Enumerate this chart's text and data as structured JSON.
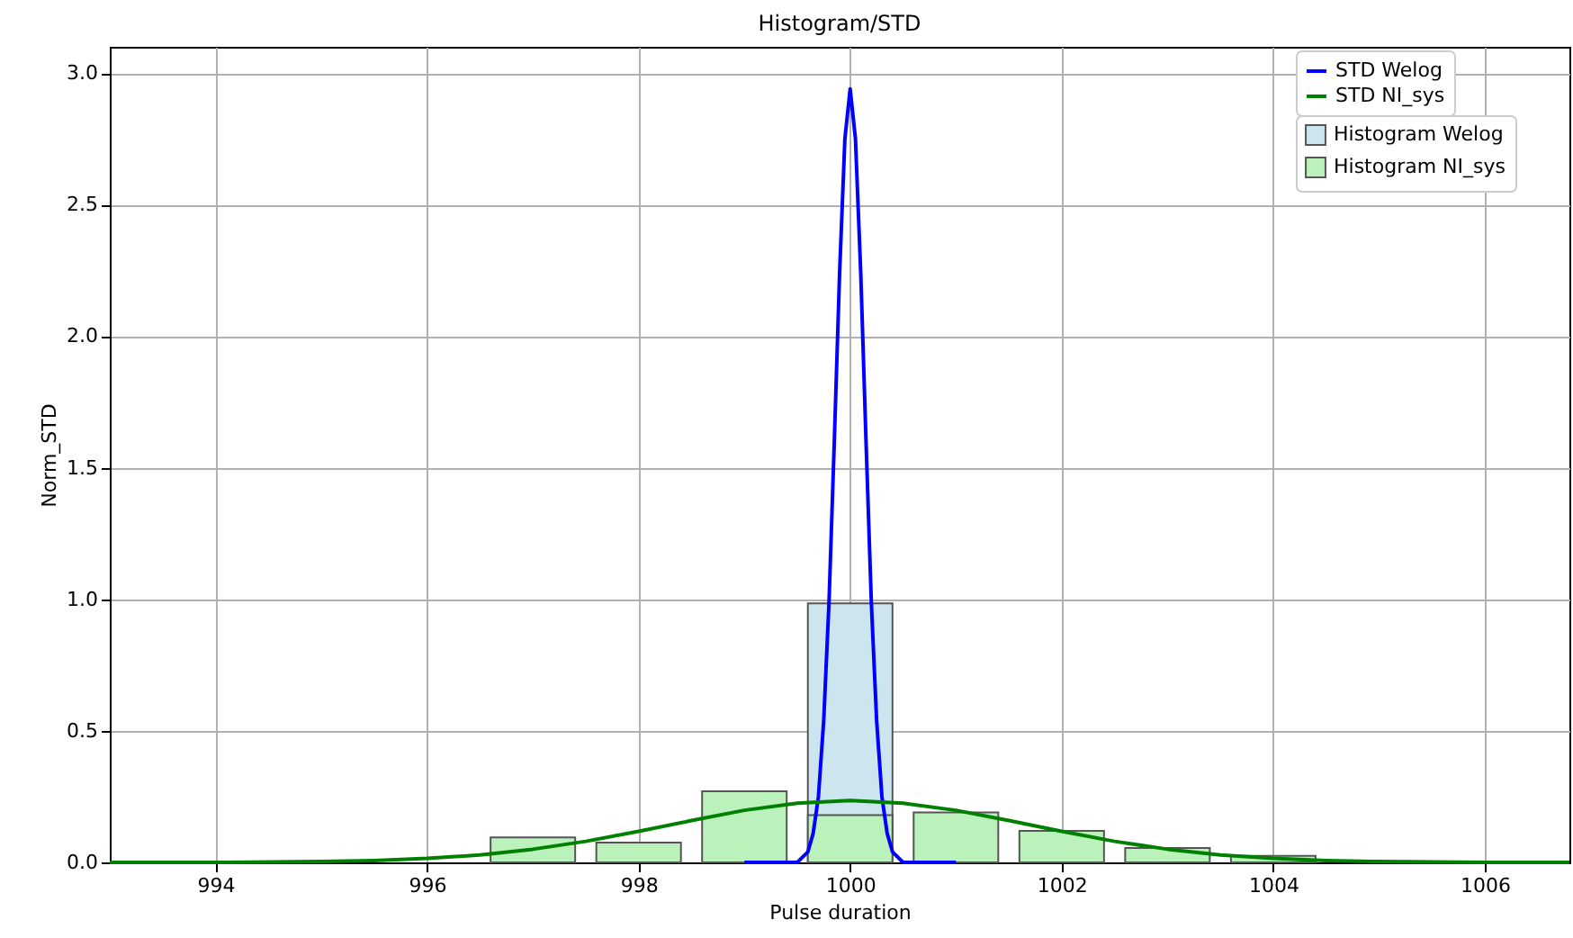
{
  "chart_data": {
    "type": "histogram",
    "title": "Histogram/STD",
    "xlabel": "Pulse duration",
    "ylabel": "Norm_STD",
    "xlim": [
      993,
      1006.8
    ],
    "xticks": [
      994,
      996,
      998,
      1000,
      1002,
      1004,
      1006
    ],
    "ylim": [
      0,
      3.1
    ],
    "yticks": [
      {
        "value": 0,
        "label": "0.0"
      },
      0.5,
      {
        "value": 1,
        "label": "1.0"
      },
      1.5,
      {
        "value": 2,
        "label": "2.0"
      },
      2.5,
      {
        "value": 3,
        "label": "3.0"
      }
    ],
    "grid": true,
    "legend": "top right",
    "series": [
      {
        "name": "STD Welog",
        "type": "line",
        "color": "#0000ff",
        "x": [
          999,
          999.5,
          999.6,
          999.65,
          999.7,
          999.75,
          999.8,
          999.85,
          999.9,
          999.95,
          1000,
          1000.05,
          1000.1,
          1000.15,
          1000.2,
          1000.25,
          1000.3,
          1000.35,
          1000.4,
          1000.5,
          1001
        ],
        "values": [
          0,
          0,
          0.04,
          0.11,
          0.25,
          0.54,
          0.99,
          1.6,
          2.24,
          2.75,
          2.94,
          2.75,
          2.24,
          1.6,
          0.99,
          0.54,
          0.25,
          0.11,
          0.04,
          0,
          0
        ]
      },
      {
        "name": "STD NI_sys",
        "type": "line",
        "color": "#008000",
        "x": [
          993,
          994,
          995,
          995.5,
          996,
          996.5,
          997,
          997.5,
          998,
          998.5,
          999,
          999.5,
          1000,
          1000.5,
          1001,
          1001.5,
          1002,
          1002.5,
          1003,
          1003.5,
          1004,
          1004.5,
          1005,
          1006,
          1006.8
        ],
        "values": [
          0,
          0,
          0.003,
          0.007,
          0.015,
          0.028,
          0.05,
          0.08,
          0.118,
          0.159,
          0.198,
          0.225,
          0.235,
          0.225,
          0.198,
          0.159,
          0.118,
          0.08,
          0.05,
          0.028,
          0.015,
          0.007,
          0.003,
          0,
          0
        ]
      },
      {
        "name": "Histogram Welog",
        "color": "#cce5ee",
        "bins": [
          999.5,
          1000.5
        ],
        "values": [
          0.985
        ]
      },
      {
        "name": "Histogram NI_sys",
        "color": "#bbf2bb",
        "bins": [
          996.5,
          997.5,
          998.5,
          999.5,
          1000.5,
          1001.5,
          1002.5,
          1003.5,
          1004.5
        ],
        "values": [
          0.095,
          0.075,
          0.27,
          0.18,
          0.19,
          0.12,
          0.055,
          0.025
        ]
      }
    ]
  }
}
